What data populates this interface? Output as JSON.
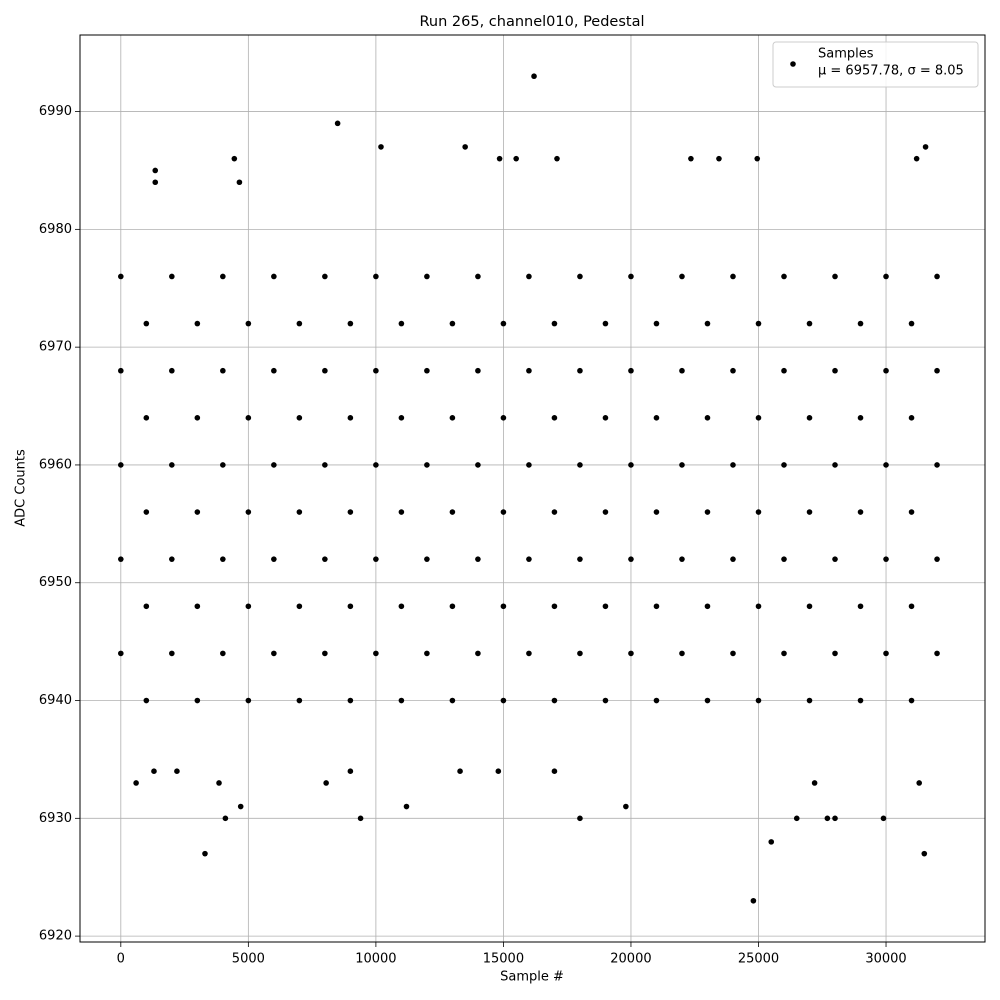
{
  "chart_data": {
    "type": "scatter",
    "title": "Run 265, channel010, Pedestal",
    "xlabel": "Sample #",
    "ylabel": "ADC Counts",
    "xlim": [
      -1600,
      33880
    ],
    "ylim": [
      6919.5,
      6996.5
    ],
    "xticks": [
      0,
      5000,
      10000,
      15000,
      20000,
      25000,
      30000
    ],
    "yticks": [
      6920,
      6930,
      6940,
      6950,
      6960,
      6970,
      6980,
      6990
    ],
    "grid": true,
    "legend": "upper right",
    "legend_note": "μ = 6957.78, σ = 8.05",
    "series": [
      {
        "name": "Samples",
        "color": "#000000",
        "x": [
          0,
          2000,
          4000,
          6000,
          8000,
          10000,
          12000,
          14000,
          16000,
          18000,
          20000,
          22000,
          24000,
          26000,
          28000,
          30000,
          32000,
          1000,
          3000,
          5000,
          7000,
          9000,
          11000,
          13000,
          15000,
          17000,
          19000,
          21000,
          23000,
          25000,
          27000,
          29000,
          31000,
          0,
          2000,
          4000,
          6000,
          8000,
          10000,
          12000,
          14000,
          16000,
          18000,
          20000,
          22000,
          24000,
          26000,
          28000,
          30000,
          32000,
          1000,
          3000,
          5000,
          7000,
          9000,
          11000,
          13000,
          15000,
          17000,
          19000,
          21000,
          23000,
          25000,
          27000,
          29000,
          31000,
          0,
          2000,
          4000,
          6000,
          8000,
          10000,
          12000,
          14000,
          16000,
          18000,
          20000,
          22000,
          24000,
          26000,
          28000,
          30000,
          32000,
          1000,
          3000,
          5000,
          7000,
          9000,
          11000,
          13000,
          15000,
          17000,
          19000,
          21000,
          23000,
          25000,
          27000,
          29000,
          31000,
          0,
          2000,
          4000,
          6000,
          8000,
          10000,
          12000,
          14000,
          16000,
          18000,
          20000,
          22000,
          24000,
          26000,
          28000,
          30000,
          32000,
          1000,
          3000,
          5000,
          7000,
          9000,
          11000,
          13000,
          15000,
          17000,
          19000,
          21000,
          23000,
          25000,
          27000,
          29000,
          31000,
          0,
          2000,
          4000,
          6000,
          8000,
          10000,
          12000,
          14000,
          16000,
          18000,
          20000,
          22000,
          24000,
          26000,
          28000,
          30000,
          32000,
          1000,
          3000,
          5000,
          7000,
          9000,
          11000,
          13000,
          15000,
          17000,
          19000,
          21000,
          23000,
          25000,
          27000,
          29000,
          31000,
          16200,
          8500,
          4450,
          4650,
          1350,
          1350,
          10200,
          13500,
          14850,
          15500,
          17100,
          22350,
          23450,
          24950,
          31550,
          31200,
          3300,
          25500,
          24800,
          31500,
          4100,
          9400,
          18000,
          26500,
          27700,
          28000,
          29900,
          11200,
          4700,
          19800,
          600,
          3850,
          8050,
          27200,
          31300,
          1300,
          2200,
          9000,
          13300,
          14800,
          17000
        ],
        "values": [
          6976,
          6976,
          6976,
          6976,
          6976,
          6976,
          6976,
          6976,
          6976,
          6976,
          6976,
          6976,
          6976,
          6976,
          6976,
          6976,
          6976,
          6972,
          6972,
          6972,
          6972,
          6972,
          6972,
          6972,
          6972,
          6972,
          6972,
          6972,
          6972,
          6972,
          6972,
          6972,
          6972,
          6968,
          6968,
          6968,
          6968,
          6968,
          6968,
          6968,
          6968,
          6968,
          6968,
          6968,
          6968,
          6968,
          6968,
          6968,
          6968,
          6968,
          6964,
          6964,
          6964,
          6964,
          6964,
          6964,
          6964,
          6964,
          6964,
          6964,
          6964,
          6964,
          6964,
          6964,
          6964,
          6964,
          6960,
          6960,
          6960,
          6960,
          6960,
          6960,
          6960,
          6960,
          6960,
          6960,
          6960,
          6960,
          6960,
          6960,
          6960,
          6960,
          6960,
          6956,
          6956,
          6956,
          6956,
          6956,
          6956,
          6956,
          6956,
          6956,
          6956,
          6956,
          6956,
          6956,
          6956,
          6956,
          6956,
          6952,
          6952,
          6952,
          6952,
          6952,
          6952,
          6952,
          6952,
          6952,
          6952,
          6952,
          6952,
          6952,
          6952,
          6952,
          6952,
          6952,
          6948,
          6948,
          6948,
          6948,
          6948,
          6948,
          6948,
          6948,
          6948,
          6948,
          6948,
          6948,
          6948,
          6948,
          6948,
          6948,
          6944,
          6944,
          6944,
          6944,
          6944,
          6944,
          6944,
          6944,
          6944,
          6944,
          6944,
          6944,
          6944,
          6944,
          6944,
          6944,
          6944,
          6940,
          6940,
          6940,
          6940,
          6940,
          6940,
          6940,
          6940,
          6940,
          6940,
          6940,
          6940,
          6940,
          6940,
          6940,
          6940,
          6993,
          6989,
          6986,
          6984,
          6985,
          6984,
          6987,
          6987,
          6986,
          6986,
          6986,
          6986,
          6986,
          6986,
          6987,
          6986,
          6927,
          6928,
          6923,
          6927,
          6930,
          6930,
          6930,
          6930,
          6930,
          6930,
          6930,
          6931,
          6931,
          6931,
          6933,
          6933,
          6933,
          6933,
          6933,
          6934,
          6934,
          6934,
          6934,
          6934,
          6934
        ]
      }
    ]
  }
}
